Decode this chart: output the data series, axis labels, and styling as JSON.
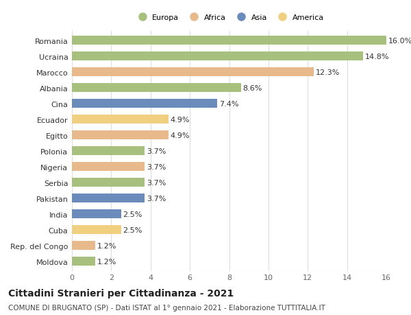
{
  "categories": [
    "Romania",
    "Ucraina",
    "Marocco",
    "Albania",
    "Cina",
    "Ecuador",
    "Egitto",
    "Polonia",
    "Nigeria",
    "Serbia",
    "Pakistan",
    "India",
    "Cuba",
    "Rep. del Congo",
    "Moldova"
  ],
  "values": [
    16.0,
    14.8,
    12.3,
    8.6,
    7.4,
    4.9,
    4.9,
    3.7,
    3.7,
    3.7,
    3.7,
    2.5,
    2.5,
    1.2,
    1.2
  ],
  "continents": [
    "Europa",
    "Europa",
    "Africa",
    "Europa",
    "Asia",
    "America",
    "Africa",
    "Europa",
    "Africa",
    "Europa",
    "Asia",
    "Asia",
    "America",
    "Africa",
    "Europa"
  ],
  "continent_colors": {
    "Europa": "#a8c07e",
    "Africa": "#e8b98a",
    "Asia": "#6b8cba",
    "America": "#f0d080"
  },
  "legend_order": [
    "Europa",
    "Africa",
    "Asia",
    "America"
  ],
  "title_main": "Cittadini Stranieri per Cittadinanza - 2021",
  "title_sub": "COMUNE DI BRUGNATO (SP) - Dati ISTAT al 1° gennaio 2021 - Elaborazione TUTTITALIA.IT",
  "xlim": [
    0,
    16
  ],
  "xticks": [
    0,
    2,
    4,
    6,
    8,
    10,
    12,
    14,
    16
  ],
  "bar_height": 0.55,
  "background_color": "#ffffff",
  "grid_color": "#dddddd",
  "label_fontsize": 8,
  "tick_fontsize": 8,
  "title_fontsize": 10,
  "subtitle_fontsize": 7.5
}
